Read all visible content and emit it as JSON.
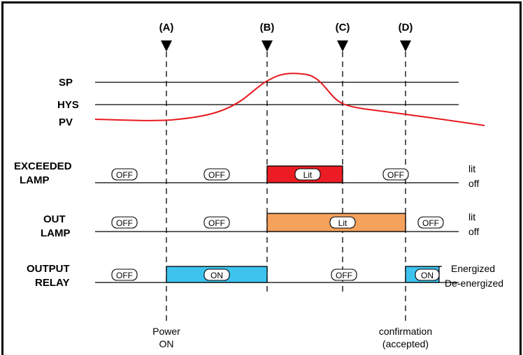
{
  "markers": [
    {
      "label": "(A)"
    },
    {
      "label": "(B)"
    },
    {
      "label": "(C)"
    },
    {
      "label": "(D)"
    }
  ],
  "levels": {
    "sp": "SP",
    "hys": "HYS",
    "pv": "PV"
  },
  "rows": {
    "exceeded": {
      "title": [
        "EXCEEDED",
        "LAMP"
      ],
      "states": [
        "OFF",
        "OFF",
        "Lit",
        "OFF"
      ],
      "right_top": "lit",
      "right_bottom": "off",
      "color": "#ec1c24"
    },
    "out": {
      "title": [
        "OUT",
        "LAMP"
      ],
      "states": [
        "OFF",
        "OFF",
        "Lit",
        "OFF"
      ],
      "right_top": "lit",
      "right_bottom": "off",
      "color": "#f5a25d"
    },
    "relay": {
      "title": [
        "OUTPUT",
        "RELAY"
      ],
      "states": [
        "OFF",
        "ON",
        "OFF",
        "ON"
      ],
      "right_top": "Energized",
      "right_bottom": "De-energized",
      "color": "#3dc3ee"
    }
  },
  "bottom": {
    "power": [
      "Power",
      "ON"
    ],
    "confirm": [
      "confirmation",
      "(accepted)"
    ]
  },
  "curve_color": "#e8191e"
}
